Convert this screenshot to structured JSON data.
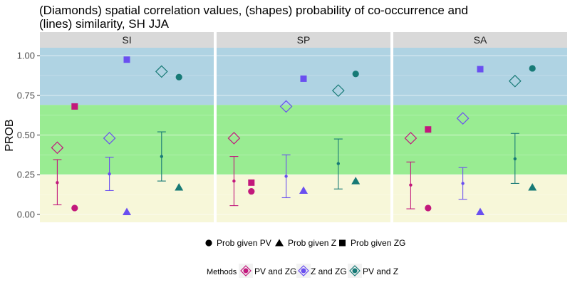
{
  "chart_data": {
    "type": "scatter",
    "title_lines": [
      "(Diamonds) spatial correlation values, (shapes) probability of co-occurrence and",
      "(lines) similarity, SH JJA"
    ],
    "ylabel": "PROB",
    "ylim": [
      -0.05,
      1.05
    ],
    "y_ticks": [
      0.0,
      0.25,
      0.5,
      0.75,
      1.0
    ],
    "y_tick_labels": [
      "0.00",
      "0.25",
      "0.50",
      "0.75",
      "1.00"
    ],
    "x_domain": [
      0.5,
      5.5
    ],
    "grid": true,
    "bands": [
      {
        "from": -0.05,
        "to": 0.25,
        "color": "#f7f7d9"
      },
      {
        "from": 0.25,
        "to": 0.69,
        "color": "#99ec92"
      },
      {
        "from": 0.69,
        "to": 1.05,
        "color": "#afd3e3"
      }
    ],
    "methods": [
      {
        "name": "PV and ZG",
        "color": "#c2187c"
      },
      {
        "name": "Z and ZG",
        "color": "#6a4ff0"
      },
      {
        "name": "PV and Z",
        "color": "#177a76"
      }
    ],
    "shape_legend": [
      {
        "label": "Prob given PV",
        "shape": "circle"
      },
      {
        "label": "Prob given Z",
        "shape": "triangle"
      },
      {
        "label": "Prob given ZG",
        "shape": "square"
      }
    ],
    "legend_title": "Methods",
    "legend_position": "bottom",
    "panels": [
      {
        "label": "SI",
        "series": [
          {
            "method": 0,
            "diamond": {
              "x": 1.0,
              "y": 0.42
            },
            "errorbar": {
              "x": 1.0,
              "mean": 0.2,
              "low": 0.06,
              "high": 0.345
            },
            "points": [
              {
                "shape": "circle",
                "x": 1.5,
                "y": 0.04
              },
              {
                "shape": "square",
                "x": 1.5,
                "y": 0.68
              }
            ]
          },
          {
            "method": 1,
            "diamond": {
              "x": 2.5,
              "y": 0.48
            },
            "errorbar": {
              "x": 2.5,
              "mean": 0.255,
              "low": 0.15,
              "high": 0.36
            },
            "points": [
              {
                "shape": "triangle",
                "x": 3.0,
                "y": 0.015
              },
              {
                "shape": "square",
                "x": 3.0,
                "y": 0.975
              }
            ]
          },
          {
            "method": 2,
            "diamond": {
              "x": 4.0,
              "y": 0.9
            },
            "errorbar": {
              "x": 4.0,
              "mean": 0.365,
              "low": 0.21,
              "high": 0.52
            },
            "points": [
              {
                "shape": "circle",
                "x": 4.5,
                "y": 0.865
              },
              {
                "shape": "triangle",
                "x": 4.5,
                "y": 0.17
              }
            ]
          }
        ]
      },
      {
        "label": "SP",
        "series": [
          {
            "method": 0,
            "diamond": {
              "x": 1.0,
              "y": 0.48
            },
            "errorbar": {
              "x": 1.0,
              "mean": 0.21,
              "low": 0.055,
              "high": 0.365
            },
            "points": [
              {
                "shape": "circle",
                "x": 1.5,
                "y": 0.145
              },
              {
                "shape": "square",
                "x": 1.5,
                "y": 0.2
              }
            ]
          },
          {
            "method": 1,
            "diamond": {
              "x": 2.5,
              "y": 0.68
            },
            "errorbar": {
              "x": 2.5,
              "mean": 0.24,
              "low": 0.105,
              "high": 0.375
            },
            "points": [
              {
                "shape": "triangle",
                "x": 3.0,
                "y": 0.15
              },
              {
                "shape": "square",
                "x": 3.0,
                "y": 0.855
              }
            ]
          },
          {
            "method": 2,
            "diamond": {
              "x": 4.0,
              "y": 0.78
            },
            "errorbar": {
              "x": 4.0,
              "mean": 0.32,
              "low": 0.16,
              "high": 0.475
            },
            "points": [
              {
                "shape": "circle",
                "x": 4.5,
                "y": 0.885
              },
              {
                "shape": "triangle",
                "x": 4.5,
                "y": 0.21
              }
            ]
          }
        ]
      },
      {
        "label": "SA",
        "series": [
          {
            "method": 0,
            "diamond": {
              "x": 1.0,
              "y": 0.48
            },
            "errorbar": {
              "x": 1.0,
              "mean": 0.185,
              "low": 0.035,
              "high": 0.33
            },
            "points": [
              {
                "shape": "circle",
                "x": 1.5,
                "y": 0.04
              },
              {
                "shape": "square",
                "x": 1.5,
                "y": 0.535
              }
            ]
          },
          {
            "method": 1,
            "diamond": {
              "x": 2.5,
              "y": 0.605
            },
            "errorbar": {
              "x": 2.5,
              "mean": 0.195,
              "low": 0.095,
              "high": 0.295
            },
            "points": [
              {
                "shape": "triangle",
                "x": 3.0,
                "y": 0.015
              },
              {
                "shape": "square",
                "x": 3.0,
                "y": 0.915
              }
            ]
          },
          {
            "method": 2,
            "diamond": {
              "x": 4.0,
              "y": 0.84
            },
            "errorbar": {
              "x": 4.0,
              "mean": 0.35,
              "low": 0.195,
              "high": 0.51
            },
            "points": [
              {
                "shape": "circle",
                "x": 4.5,
                "y": 0.92
              },
              {
                "shape": "triangle",
                "x": 4.5,
                "y": 0.17
              }
            ]
          }
        ]
      }
    ]
  }
}
